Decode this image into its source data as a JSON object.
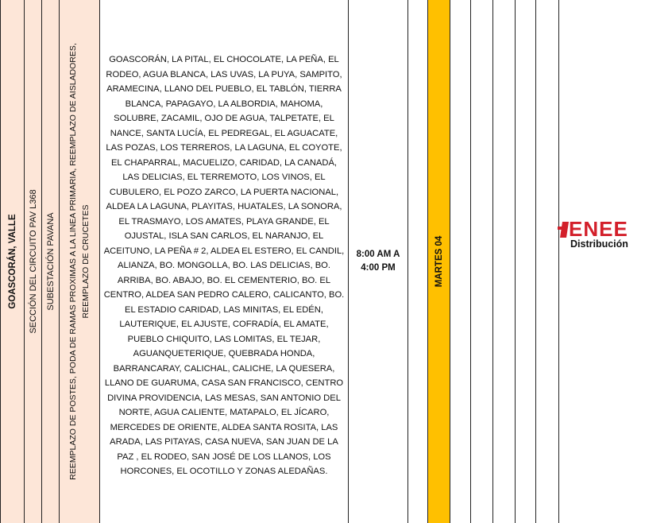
{
  "municipality": "GOASCORÁN, VALLE",
  "circuit_section": "SECCIÓN DEL CIRCUITO PAV L368",
  "substation": "SUBESTACIÓN PAVANA",
  "work_description": "REEMPLAZO DE POSTES, PODA DE RAMAS PROXIMAS A LA LINEA PRIMARIA, REEMPLAZO DE AISLADORES, REEMPLAZO DE CRUCETES",
  "affected_areas": "GOASCORÁN, LA PITAL, EL CHOCOLATE, LA PEÑA, EL RODEO, AGUA BLANCA, LAS UVAS, LA PUYA, SAMPITO, ARAMECINA, LLANO DEL PUEBLO, EL TABLÓN, TIERRA BLANCA, PAPAGAYO, LA ALBORDIA, MAHOMA, SOLUBRE, ZACAMIL, OJO DE AGUA, TALPETATE, EL NANCE, SANTA LUCÍA, EL PEDREGAL, EL AGUACATE, LAS POZAS, LOS TERREROS, LA LAGUNA, EL COYOTE, EL CHAPARRAL, MACUELIZO, CARIDAD, LA CANADÁ, LAS DELICIAS, EL TERREMOTO, LOS VINOS, EL CUBULERO, EL POZO ZARCO, LA PUERTA NACIONAL, ALDEA LA LAGUNA, PLAYITAS, HUATALES, LA SONORA, EL TRASMAYO, LOS AMATES, PLAYA GRANDE, EL OJUSTAL, ISLA SAN CARLOS, EL NARANJO, EL ACEITUNO, LA PEÑA # 2, ALDEA EL ESTERO, EL CANDIL, ALIANZA, BO. MONGOLLA, BO. LAS DELICIAS, BO. ARRIBA, BO. ABAJO, BO. EL CEMENTERIO, BO. EL CENTRO, ALDEA SAN PEDRO CALERO, CALICANTO, BO. EL ESTADIO CARIDAD, LAS MINITAS, EL EDÉN, LAUTERIQUE, EL AJUSTE, COFRADÍA, EL AMATE, PUEBLO CHIQUITO, LAS LOMITAS, EL TEJAR, AGUANQUETERIQUE, QUEBRADA HONDA, BARRANCARAY, CALICHAL, CALICHE, LA QUESERA, LLANO DE GUARUMA, CASA SAN FRANCISCO, CENTRO DIVINA PROVIDENCIA, LAS MESAS, SAN ANTONIO DEL NORTE, AGUA CALIENTE, MATAPALO, EL JÍCARO, MERCEDES DE ORIENTE, ALDEA SANTA ROSITA, LAS ARADA, LAS PITAYAS, CASA NUEVA, SAN JUAN DE LA PAZ , EL RODEO, SAN JOSÉ DE LOS LLANOS, LOS HORCONES, EL OCOTILLO Y ZONAS ALEDAÑAS.",
  "time_start": "8:00 AM A",
  "time_end": "4:00 PM",
  "day": "MARTES 04",
  "logo": {
    "brand": "ENEE",
    "subtitle": "Distribución",
    "color": "#d31f2a"
  },
  "colors": {
    "peach": "#fde6d8",
    "highlight": "#ffc000"
  }
}
